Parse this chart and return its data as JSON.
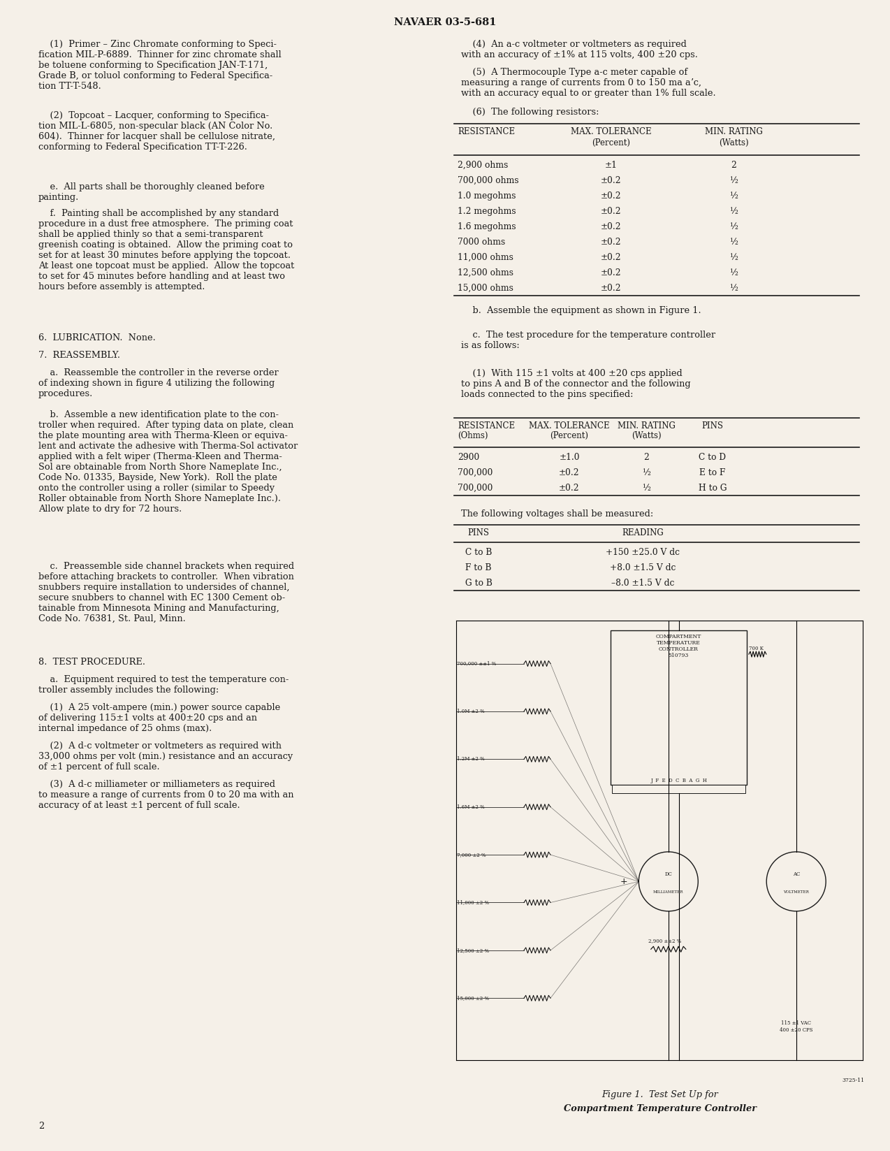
{
  "title": "NAVAER 03-5-681",
  "page_number": "2",
  "bg_color": "#f5f0e8",
  "text_color": "#1a1a1a",
  "table1_rows": [
    [
      "2,900 ohms",
      "±1",
      "2"
    ],
    [
      "700,000 ohms",
      "±0.2",
      "½"
    ],
    [
      "1.0 megohms",
      "±0.2",
      "½"
    ],
    [
      "1.2 megohms",
      "±0.2",
      "½"
    ],
    [
      "1.6 megohms",
      "±0.2",
      "½"
    ],
    [
      "7000 ohms",
      "±0.2",
      "½"
    ],
    [
      "11,000 ohms",
      "±0.2",
      "½"
    ],
    [
      "12,500 ohms",
      "±0.2",
      "½"
    ],
    [
      "15,000 ohms",
      "±0.2",
      "½"
    ]
  ],
  "table2_rows": [
    [
      "2900",
      "±1.0",
      "2",
      "C to D"
    ],
    [
      "700,000",
      "±0.2",
      "½",
      "E to F"
    ],
    [
      "700,000",
      "±0.2",
      "½",
      "H to G"
    ]
  ],
  "table3_rows": [
    [
      "C to B",
      "+150 ±25.0 V dc"
    ],
    [
      "F to B",
      "+8.0 ±1.5 V dc"
    ],
    [
      "G to B",
      "–8.0 ±1.5 V dc"
    ]
  ],
  "figure_number": "3725-11",
  "res_labels": [
    "700,000 ±±1 %",
    "1.0M ±2 %",
    "1.2M ±2 %",
    "1.6M ±2 %",
    "7,000 ±2 %",
    "11,000 ±2 %",
    "12,500 ±2 %",
    "15,000 ±2 %"
  ]
}
